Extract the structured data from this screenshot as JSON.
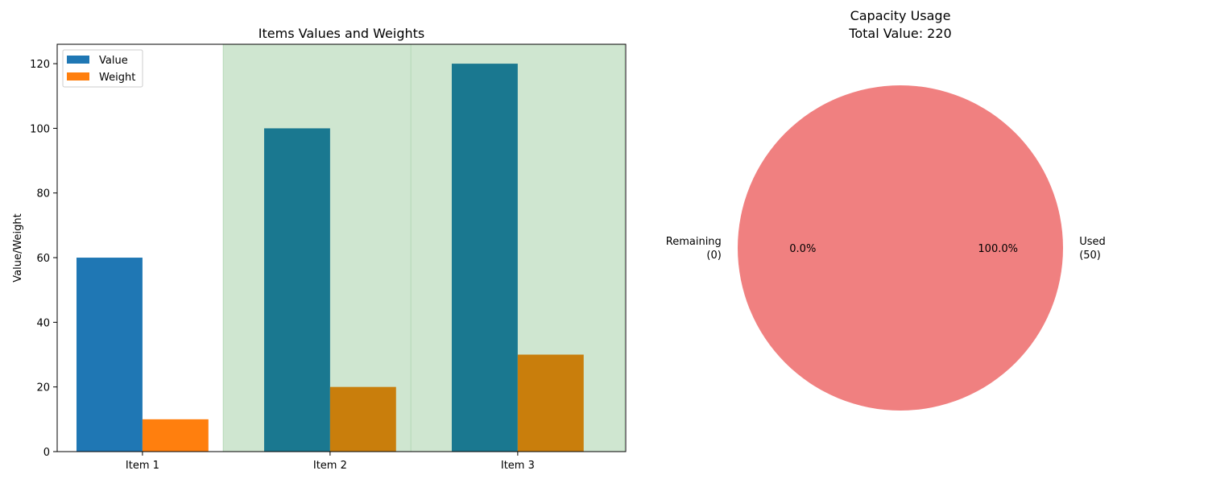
{
  "chart_data": [
    {
      "type": "bar",
      "title": "Items Values and Weights",
      "xlabel": "",
      "ylabel": "Value/Weight",
      "categories": [
        "Item 1",
        "Item 2",
        "Item 3"
      ],
      "series": [
        {
          "name": "Value",
          "values": [
            60,
            100,
            120
          ],
          "color": "#1f77b4",
          "highlight_color": "#1a7890"
        },
        {
          "name": "Weight",
          "values": [
            10,
            20,
            30
          ],
          "color": "#ff7f0e",
          "highlight_color": "#c97e0c"
        }
      ],
      "selected": [
        false,
        true,
        true
      ],
      "selected_band_color": "#cfe6d0",
      "ylim": [
        0,
        126
      ],
      "yticks": [
        0,
        20,
        40,
        60,
        80,
        100,
        120
      ],
      "grid": false,
      "legend_position": "upper-left"
    },
    {
      "type": "pie",
      "title": "Capacity Usage",
      "subtitle": "Total Value: 220",
      "slices": [
        {
          "label": "Used",
          "value": 50,
          "value_label": "(50)",
          "percent_label": "100.0%",
          "color": "#f08080"
        },
        {
          "label": "Remaining",
          "value": 0,
          "value_label": "(0)",
          "percent_label": "0.0%",
          "color": "#90ee90"
        }
      ]
    }
  ]
}
